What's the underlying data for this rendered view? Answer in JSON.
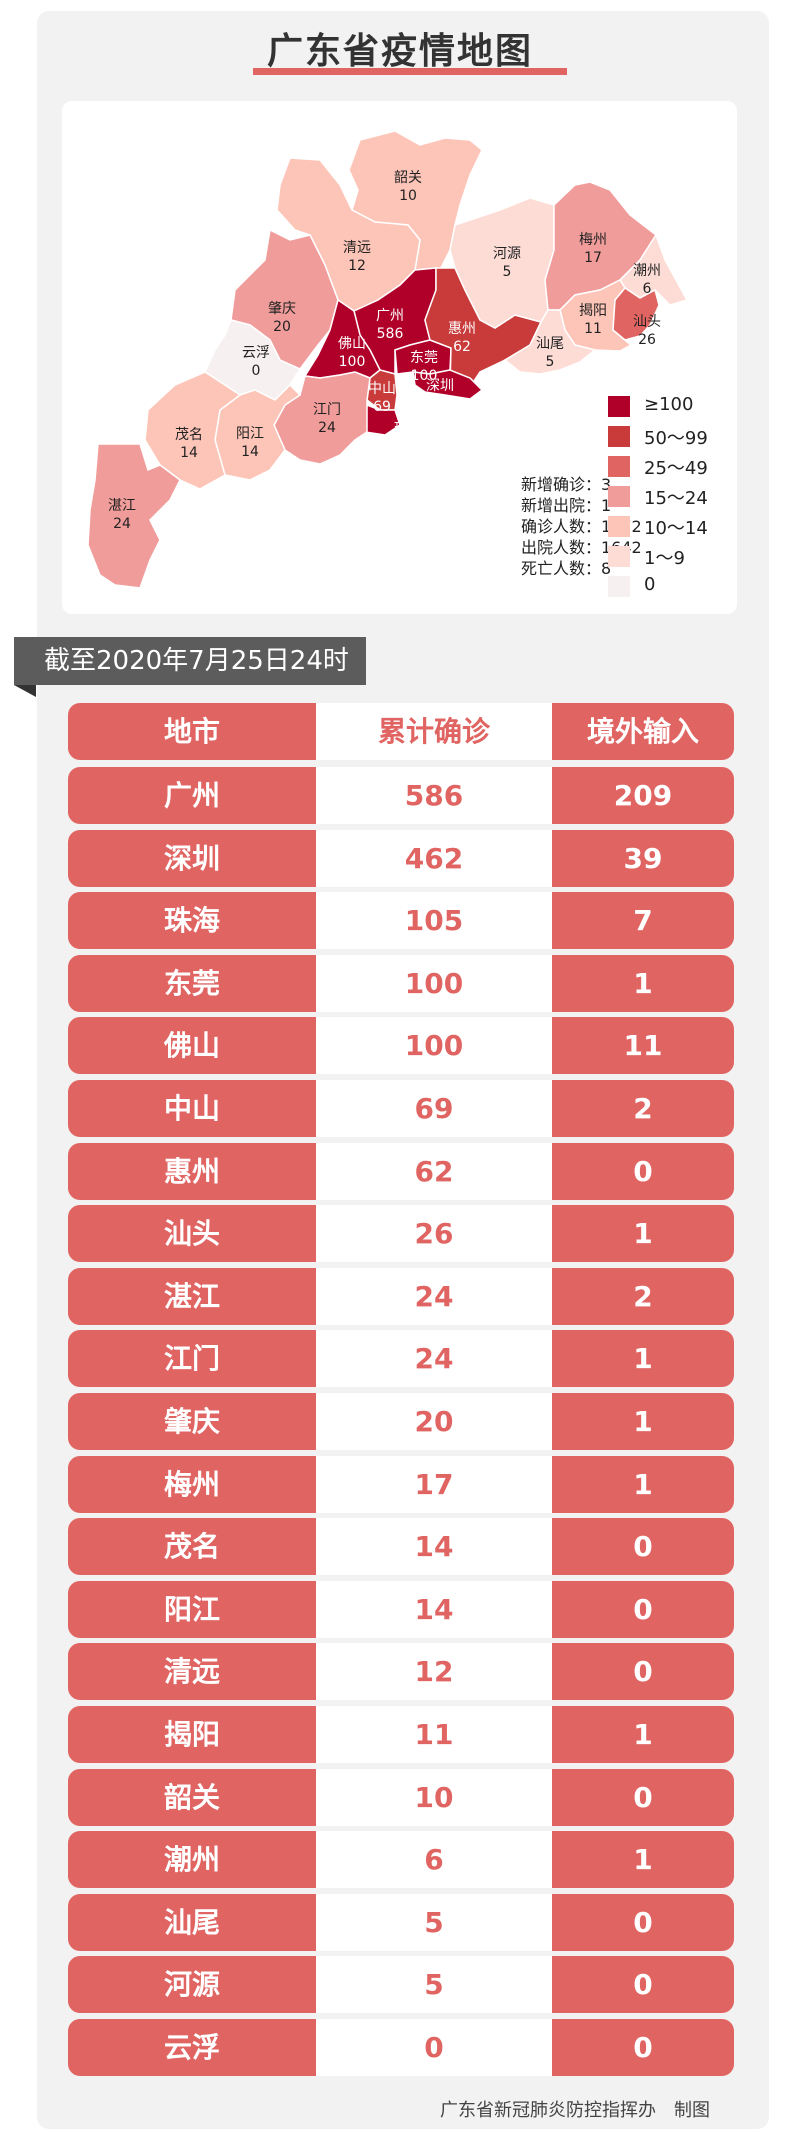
{
  "title": "广东省疫情地图",
  "colors": {
    "accent": "#e06462",
    "ge100": "#b0002a",
    "c50_99": "#c93a3a",
    "c25_49": "#e06462",
    "c15_24": "#f09c9a",
    "c10_14": "#fdc5b8",
    "c1_9": "#fddcd6",
    "c0": "#f7f0f0"
  },
  "map": {
    "cities": [
      {
        "name": "韶关",
        "value": "10"
      },
      {
        "name": "清远",
        "value": "12"
      },
      {
        "name": "肇庆",
        "value": "20"
      },
      {
        "name": "云浮",
        "value": "0"
      },
      {
        "name": "广州",
        "value": "586"
      },
      {
        "name": "佛山",
        "value": "100"
      },
      {
        "name": "东莞",
        "value": "100"
      },
      {
        "name": "惠州",
        "value": "62"
      },
      {
        "name": "深圳",
        "value": "462"
      },
      {
        "name": "中山",
        "value": "69"
      },
      {
        "name": "珠海",
        "value": "105"
      },
      {
        "name": "江门",
        "value": "24"
      },
      {
        "name": "阳江",
        "value": "14"
      },
      {
        "name": "茂名",
        "value": "14"
      },
      {
        "name": "河源",
        "value": "5"
      },
      {
        "name": "梅州",
        "value": "17"
      },
      {
        "name": "潮州",
        "value": "6"
      },
      {
        "name": "揭阳",
        "value": "11"
      },
      {
        "name": "汕头",
        "value": "26"
      },
      {
        "name": "汕尾",
        "value": "5"
      },
      {
        "name": "湛江",
        "value": "24"
      }
    ],
    "stats": [
      "新增确诊：3",
      "新增出院：1",
      "确诊人数：1672",
      "出院人数：1642",
      "死亡人数：8"
    ],
    "legend": [
      {
        "label": "≥100",
        "color": "#b0002a"
      },
      {
        "label": "50～99",
        "color": "#c93a3a"
      },
      {
        "label": "25～49",
        "color": "#e06462"
      },
      {
        "label": "15～24",
        "color": "#f09c9a"
      },
      {
        "label": "10～14",
        "color": "#fdc5b8"
      },
      {
        "label": "1～9",
        "color": "#fddcd6"
      },
      {
        "label": "0",
        "color": "#f7f0f0"
      }
    ]
  },
  "date_banner": "截至2020年7月25日24时",
  "table": {
    "headers": [
      "地市",
      "累计确诊",
      "境外输入"
    ],
    "rows": [
      [
        "广州",
        "586",
        "209"
      ],
      [
        "深圳",
        "462",
        "39"
      ],
      [
        "珠海",
        "105",
        "7"
      ],
      [
        "东莞",
        "100",
        "1"
      ],
      [
        "佛山",
        "100",
        "11"
      ],
      [
        "中山",
        "69",
        "2"
      ],
      [
        "惠州",
        "62",
        "0"
      ],
      [
        "汕头",
        "26",
        "1"
      ],
      [
        "湛江",
        "24",
        "2"
      ],
      [
        "江门",
        "24",
        "1"
      ],
      [
        "肇庆",
        "20",
        "1"
      ],
      [
        "梅州",
        "17",
        "1"
      ],
      [
        "茂名",
        "14",
        "0"
      ],
      [
        "阳江",
        "14",
        "0"
      ],
      [
        "清远",
        "12",
        "0"
      ],
      [
        "揭阳",
        "11",
        "1"
      ],
      [
        "韶关",
        "10",
        "0"
      ],
      [
        "潮州",
        "6",
        "1"
      ],
      [
        "汕尾",
        "5",
        "0"
      ],
      [
        "河源",
        "5",
        "0"
      ],
      [
        "云浮",
        "0",
        "0"
      ]
    ]
  },
  "footer": "广东省新冠肺炎防控指挥办　制图"
}
